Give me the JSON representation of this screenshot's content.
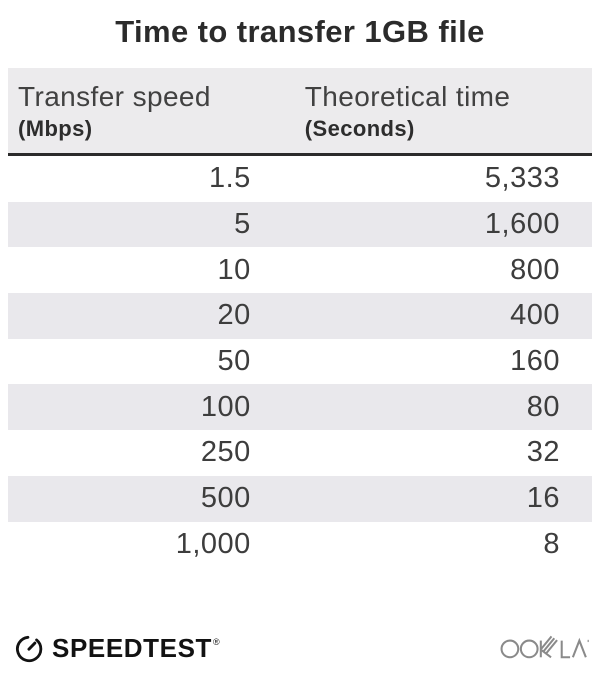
{
  "title": "Time to transfer 1GB file",
  "table": {
    "columns": [
      {
        "label": "Transfer speed",
        "unit": "(Mbps)"
      },
      {
        "label": "Theoretical time",
        "unit": "(Seconds)"
      }
    ],
    "rows": [
      {
        "speed": "1.5",
        "time": "5,333"
      },
      {
        "speed": "5",
        "time": "1,600"
      },
      {
        "speed": "10",
        "time": "800"
      },
      {
        "speed": "20",
        "time": "400"
      },
      {
        "speed": "50",
        "time": "160"
      },
      {
        "speed": "100",
        "time": "80"
      },
      {
        "speed": "250",
        "time": "32"
      },
      {
        "speed": "500",
        "time": "16"
      },
      {
        "speed": "1,000",
        "time": "8"
      }
    ]
  },
  "footer": {
    "speedtest_label": "SPEEDTEST",
    "speedtest_trademark": "®",
    "speedtest_icon": "gauge-icon",
    "ookla_label": "OOKLA",
    "ookla_icon": "ookla-wordmark"
  },
  "colors": {
    "header_bg": "#ecebed",
    "row_alt_bg": "#e9e8ec",
    "divider": "#2b2b2b",
    "title_text": "#2b2b2b",
    "number_text": "#3d3d3d",
    "speedtest_black": "#121212",
    "ookla_gray": "#8a8a8a"
  },
  "chart_data": {
    "type": "table",
    "title": "Time to transfer 1GB file",
    "columns": [
      "Transfer speed (Mbps)",
      "Theoretical time (Seconds)"
    ],
    "transfer_speed_mbps": [
      1.5,
      5,
      10,
      20,
      50,
      100,
      250,
      500,
      1000
    ],
    "theoretical_time_seconds": [
      5333,
      1600,
      800,
      400,
      160,
      80,
      32,
      16,
      8
    ]
  }
}
